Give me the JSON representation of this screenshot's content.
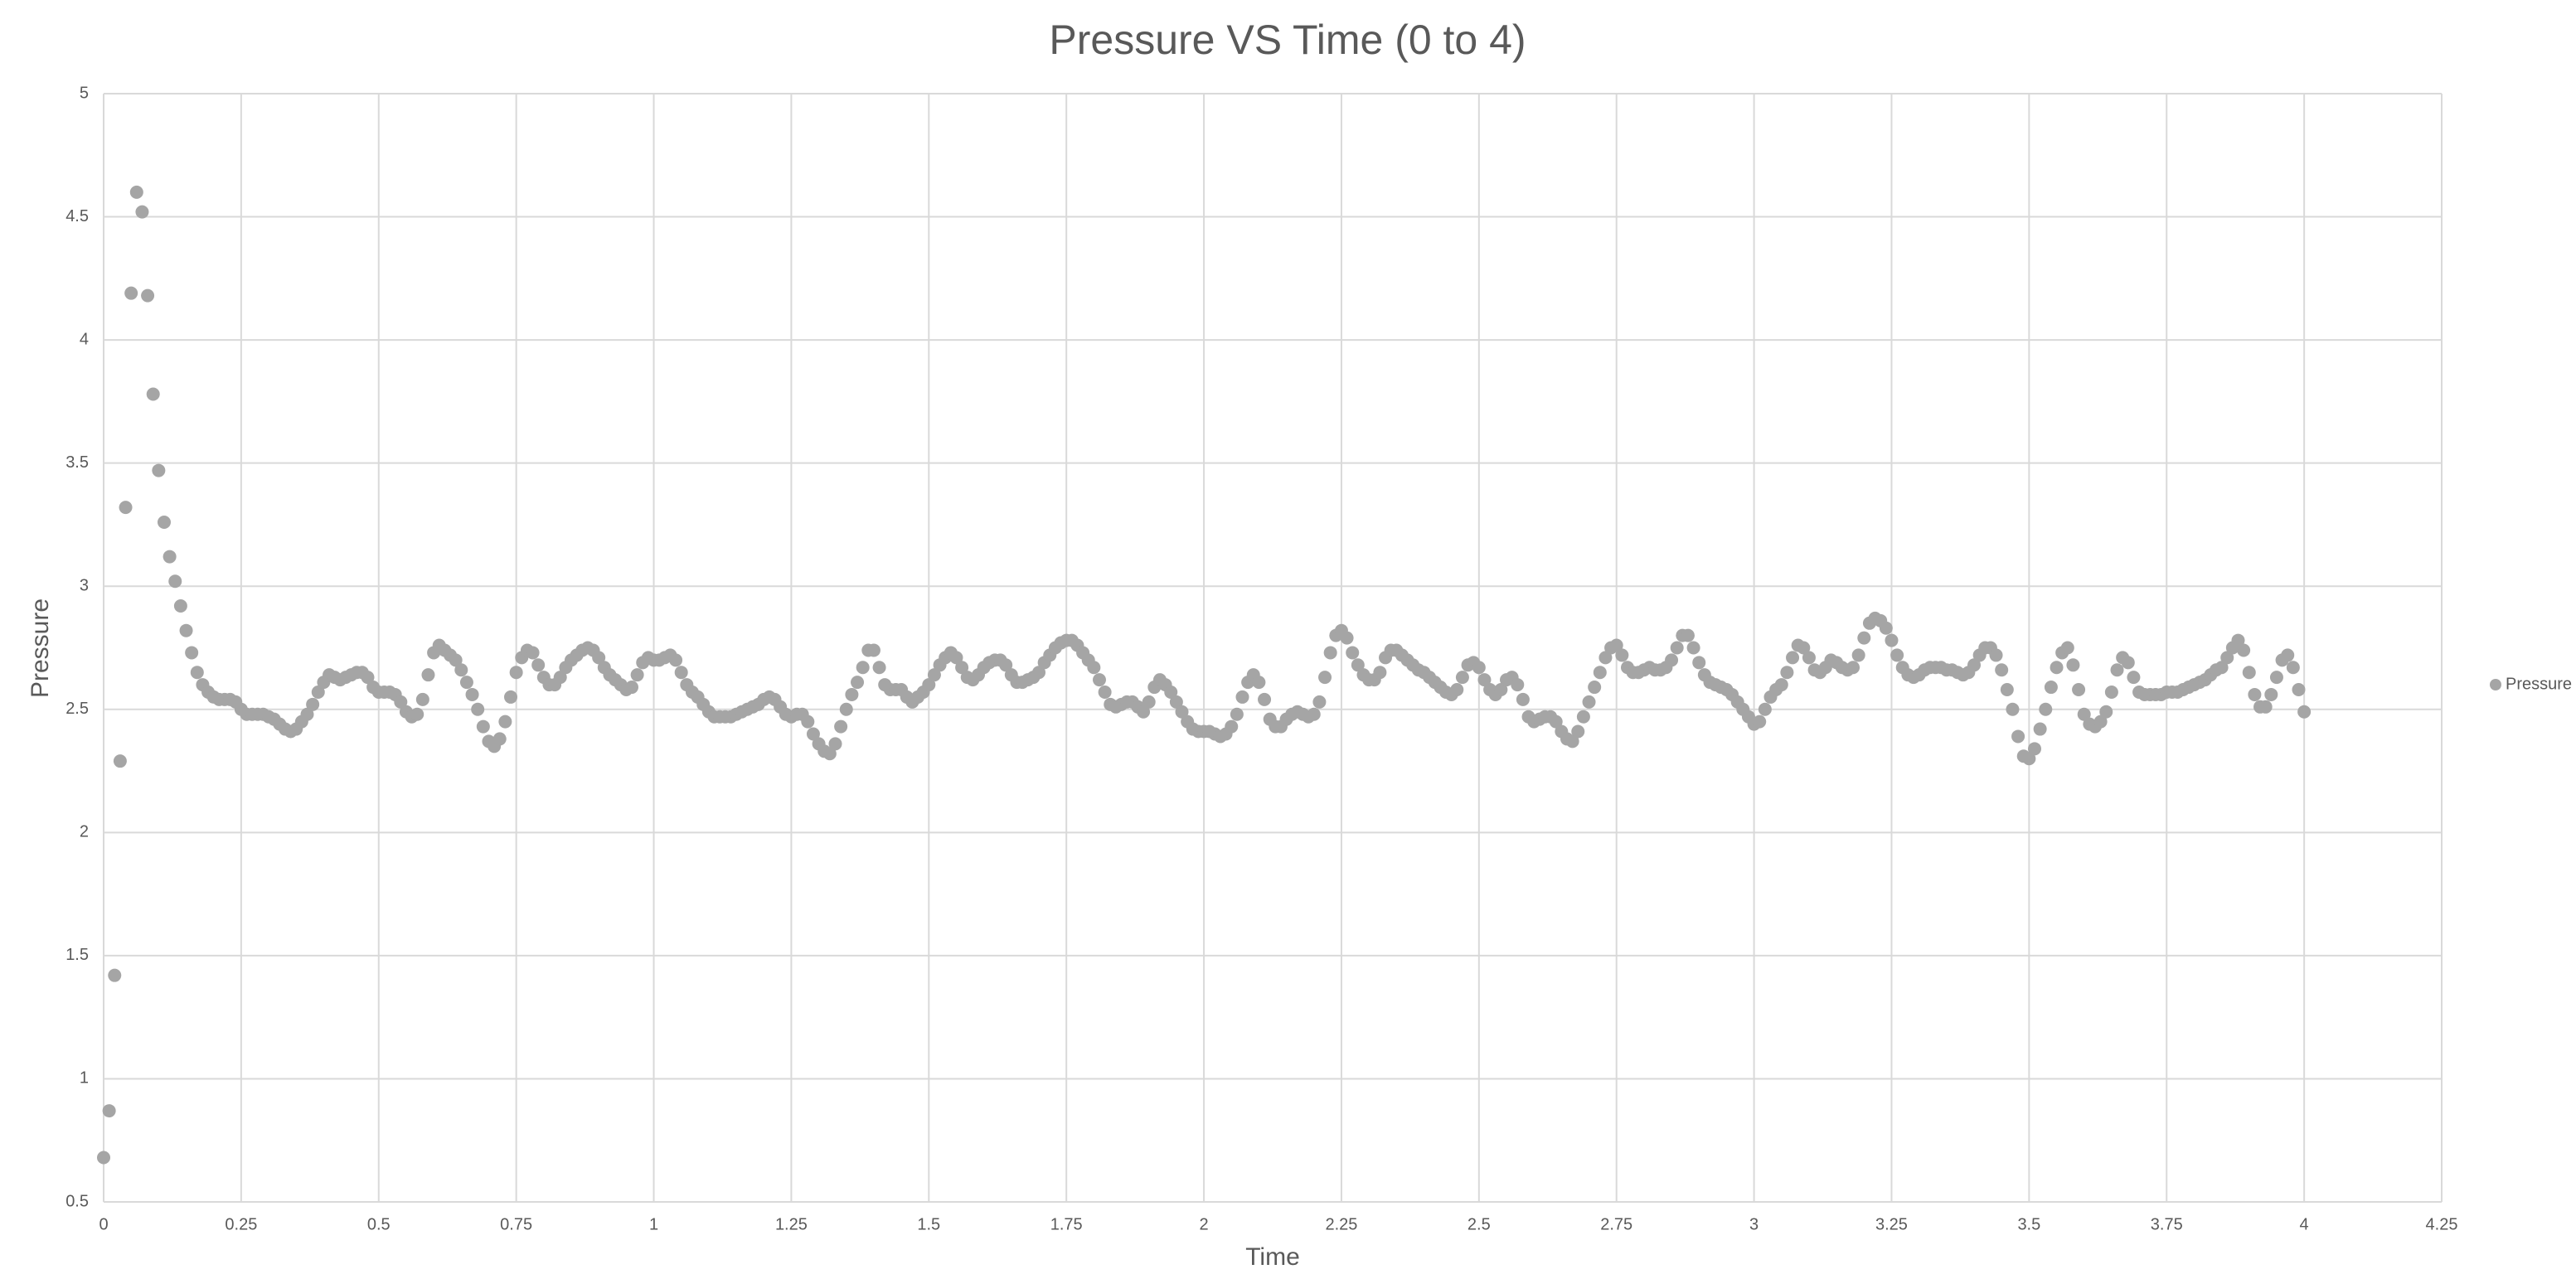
{
  "chart_data": {
    "type": "scatter",
    "title": "Pressure VS Time (0 to 4)",
    "x_label": "Time",
    "y_label": "Pressure",
    "xlim": [
      0,
      4.25
    ],
    "xticks": [
      0,
      0.25,
      0.5,
      0.75,
      1,
      1.25,
      1.5,
      1.75,
      2,
      2.25,
      2.5,
      2.75,
      3,
      3.25,
      3.5,
      3.75,
      4,
      4.25
    ],
    "ylim": [
      0.5,
      5
    ],
    "yticks": [
      0.5,
      1,
      1.5,
      2,
      2.5,
      3,
      3.5,
      4,
      4.5,
      5
    ],
    "grid": true,
    "legend": "right",
    "series": [
      {
        "name": "Pressure",
        "color": "#a5a5a5",
        "x": [
          0,
          0.01,
          0.02,
          0.03,
          0.04,
          0.05,
          0.06,
          0.07,
          0.08,
          0.09,
          0.1,
          0.11,
          0.12,
          0.13,
          0.14,
          0.15,
          0.16,
          0.17,
          0.18,
          0.19,
          0.2,
          0.21,
          0.22,
          0.23,
          0.24,
          0.25,
          0.26,
          0.27,
          0.28,
          0.29,
          0.3,
          0.31,
          0.32,
          0.33,
          0.34,
          0.35,
          0.36,
          0.37,
          0.38,
          0.39,
          0.4,
          0.41,
          0.42,
          0.43,
          0.44,
          0.45,
          0.46,
          0.47,
          0.48,
          0.49,
          0.5,
          0.51,
          0.52,
          0.53,
          0.54,
          0.55,
          0.56,
          0.57,
          0.58,
          0.59,
          0.6,
          0.61,
          0.62,
          0.63,
          0.64,
          0.65,
          0.66,
          0.67,
          0.68,
          0.69,
          0.7,
          0.71,
          0.72,
          0.73,
          0.74,
          0.75,
          0.76,
          0.77,
          0.78,
          0.79,
          0.8,
          0.81,
          0.82,
          0.83,
          0.84,
          0.85,
          0.86,
          0.87,
          0.88,
          0.89,
          0.9,
          0.91,
          0.92,
          0.93,
          0.94,
          0.95,
          0.96,
          0.97,
          0.98,
          0.99,
          1,
          1.01,
          1.02,
          1.03,
          1.04,
          1.05,
          1.06,
          1.07,
          1.08,
          1.09,
          1.1,
          1.11,
          1.12,
          1.13,
          1.14,
          1.15,
          1.16,
          1.17,
          1.18,
          1.19,
          1.2,
          1.21,
          1.22,
          1.23,
          1.24,
          1.25,
          1.26,
          1.27,
          1.28,
          1.29,
          1.3,
          1.31,
          1.32,
          1.33,
          1.34,
          1.35,
          1.36,
          1.37,
          1.38,
          1.39,
          1.4,
          1.41,
          1.42,
          1.43,
          1.44,
          1.45,
          1.46,
          1.47,
          1.48,
          1.49,
          1.5,
          1.51,
          1.52,
          1.53,
          1.54,
          1.55,
          1.56,
          1.57,
          1.58,
          1.59,
          1.6,
          1.61,
          1.62,
          1.63,
          1.64,
          1.65,
          1.66,
          1.67,
          1.68,
          1.69,
          1.7,
          1.71,
          1.72,
          1.73,
          1.74,
          1.75,
          1.76,
          1.77,
          1.78,
          1.79,
          1.8,
          1.81,
          1.82,
          1.83,
          1.84,
          1.85,
          1.86,
          1.87,
          1.88,
          1.89,
          1.9,
          1.91,
          1.92,
          1.93,
          1.94,
          1.95,
          1.96,
          1.97,
          1.98,
          1.99,
          2,
          2.01,
          2.02,
          2.03,
          2.04,
          2.05,
          2.06,
          2.07,
          2.08,
          2.09,
          2.1,
          2.11,
          2.12,
          2.13,
          2.14,
          2.15,
          2.16,
          2.17,
          2.18,
          2.19,
          2.2,
          2.21,
          2.22,
          2.23,
          2.24,
          2.25,
          2.26,
          2.27,
          2.28,
          2.29,
          2.3,
          2.31,
          2.32,
          2.33,
          2.34,
          2.35,
          2.36,
          2.37,
          2.38,
          2.39,
          2.4,
          2.41,
          2.42,
          2.43,
          2.44,
          2.45,
          2.46,
          2.47,
          2.48,
          2.49,
          2.5,
          2.51,
          2.52,
          2.53,
          2.54,
          2.55,
          2.56,
          2.57,
          2.58,
          2.59,
          2.6,
          2.61,
          2.62,
          2.63,
          2.64,
          2.65,
          2.66,
          2.67,
          2.68,
          2.69,
          2.7,
          2.71,
          2.72,
          2.73,
          2.74,
          2.75,
          2.76,
          2.77,
          2.78,
          2.79,
          2.8,
          2.81,
          2.82,
          2.83,
          2.84,
          2.85,
          2.86,
          2.87,
          2.88,
          2.89,
          2.9,
          2.91,
          2.92,
          2.93,
          2.94,
          2.95,
          2.96,
          2.97,
          2.98,
          2.99,
          3,
          3.01,
          3.02,
          3.03,
          3.04,
          3.05,
          3.06,
          3.07,
          3.08,
          3.09,
          3.1,
          3.11,
          3.12,
          3.13,
          3.14,
          3.15,
          3.16,
          3.17,
          3.18,
          3.19,
          3.2,
          3.21,
          3.22,
          3.23,
          3.24,
          3.25,
          3.26,
          3.27,
          3.28,
          3.29,
          3.3,
          3.31,
          3.32,
          3.33,
          3.34,
          3.35,
          3.36,
          3.37,
          3.38,
          3.39,
          3.4,
          3.41,
          3.42,
          3.43,
          3.44,
          3.45,
          3.46,
          3.47,
          3.48,
          3.49,
          3.5,
          3.51,
          3.52,
          3.53,
          3.54,
          3.55,
          3.56,
          3.57,
          3.58,
          3.59,
          3.6,
          3.61,
          3.62,
          3.63,
          3.64,
          3.65,
          3.66,
          3.67,
          3.68,
          3.69,
          3.7,
          3.71,
          3.72,
          3.73,
          3.74,
          3.75,
          3.76,
          3.77,
          3.78,
          3.79,
          3.8,
          3.81,
          3.82,
          3.83,
          3.84,
          3.85,
          3.86,
          3.87,
          3.88,
          3.89,
          3.9,
          3.91,
          3.92,
          3.93,
          3.94,
          3.95,
          3.96,
          3.97,
          3.98,
          3.99,
          4
        ],
        "values": [
          0.68,
          0.87,
          1.42,
          2.29,
          3.32,
          4.19,
          4.6,
          4.52,
          4.18,
          3.78,
          3.47,
          3.26,
          3.12,
          3.02,
          2.92,
          2.82,
          2.73,
          2.65,
          2.6,
          2.57,
          2.55,
          2.54,
          2.54,
          2.54,
          2.53,
          2.5,
          2.48,
          2.48,
          2.48,
          2.48,
          2.47,
          2.46,
          2.44,
          2.42,
          2.41,
          2.42,
          2.45,
          2.48,
          2.52,
          2.57,
          2.61,
          2.64,
          2.63,
          2.62,
          2.63,
          2.64,
          2.65,
          2.65,
          2.63,
          2.59,
          2.57,
          2.57,
          2.57,
          2.56,
          2.53,
          2.49,
          2.47,
          2.48,
          2.54,
          2.64,
          2.73,
          2.76,
          2.74,
          2.72,
          2.7,
          2.66,
          2.61,
          2.56,
          2.5,
          2.43,
          2.37,
          2.35,
          2.38,
          2.45,
          2.55,
          2.65,
          2.71,
          2.74,
          2.73,
          2.68,
          2.63,
          2.6,
          2.6,
          2.63,
          2.67,
          2.7,
          2.72,
          2.74,
          2.75,
          2.74,
          2.71,
          2.67,
          2.64,
          2.62,
          2.6,
          2.58,
          2.59,
          2.64,
          2.69,
          2.71,
          2.7,
          2.7,
          2.71,
          2.72,
          2.7,
          2.65,
          2.6,
          2.57,
          2.55,
          2.52,
          2.49,
          2.47,
          2.47,
          2.47,
          2.47,
          2.48,
          2.49,
          2.5,
          2.51,
          2.52,
          2.54,
          2.55,
          2.54,
          2.51,
          2.48,
          2.47,
          2.48,
          2.48,
          2.45,
          2.4,
          2.36,
          2.33,
          2.32,
          2.36,
          2.43,
          2.5,
          2.56,
          2.61,
          2.67,
          2.74,
          2.74,
          2.67,
          2.6,
          2.58,
          2.58,
          2.58,
          2.55,
          2.53,
          2.55,
          2.57,
          2.6,
          2.64,
          2.68,
          2.71,
          2.73,
          2.71,
          2.67,
          2.63,
          2.62,
          2.64,
          2.67,
          2.69,
          2.7,
          2.7,
          2.68,
          2.64,
          2.61,
          2.61,
          2.62,
          2.63,
          2.65,
          2.69,
          2.72,
          2.75,
          2.77,
          2.78,
          2.78,
          2.76,
          2.73,
          2.7,
          2.67,
          2.62,
          2.57,
          2.52,
          2.51,
          2.52,
          2.53,
          2.53,
          2.51,
          2.49,
          2.53,
          2.59,
          2.62,
          2.6,
          2.57,
          2.53,
          2.49,
          2.45,
          2.42,
          2.41,
          2.41,
          2.41,
          2.4,
          2.39,
          2.4,
          2.43,
          2.48,
          2.55,
          2.61,
          2.64,
          2.61,
          2.54,
          2.46,
          2.43,
          2.43,
          2.46,
          2.48,
          2.49,
          2.48,
          2.47,
          2.48,
          2.53,
          2.63,
          2.73,
          2.8,
          2.82,
          2.79,
          2.73,
          2.68,
          2.64,
          2.62,
          2.62,
          2.65,
          2.71,
          2.74,
          2.74,
          2.72,
          2.7,
          2.68,
          2.66,
          2.65,
          2.63,
          2.61,
          2.59,
          2.57,
          2.56,
          2.58,
          2.63,
          2.68,
          2.69,
          2.67,
          2.62,
          2.58,
          2.56,
          2.58,
          2.62,
          2.63,
          2.6,
          2.54,
          2.47,
          2.45,
          2.46,
          2.47,
          2.47,
          2.45,
          2.41,
          2.38,
          2.37,
          2.41,
          2.47,
          2.53,
          2.59,
          2.65,
          2.71,
          2.75,
          2.76,
          2.72,
          2.67,
          2.65,
          2.65,
          2.66,
          2.67,
          2.66,
          2.66,
          2.67,
          2.7,
          2.75,
          2.8,
          2.8,
          2.75,
          2.69,
          2.64,
          2.61,
          2.6,
          2.59,
          2.58,
          2.56,
          2.53,
          2.5,
          2.47,
          2.44,
          2.45,
          2.5,
          2.55,
          2.58,
          2.6,
          2.65,
          2.71,
          2.76,
          2.75,
          2.71,
          2.66,
          2.65,
          2.67,
          2.7,
          2.69,
          2.67,
          2.66,
          2.67,
          2.72,
          2.79,
          2.85,
          2.87,
          2.86,
          2.83,
          2.78,
          2.72,
          2.67,
          2.64,
          2.63,
          2.64,
          2.66,
          2.67,
          2.67,
          2.67,
          2.66,
          2.66,
          2.65,
          2.64,
          2.65,
          2.68,
          2.72,
          2.75,
          2.75,
          2.72,
          2.66,
          2.58,
          2.5,
          2.39,
          2.31,
          2.3,
          2.34,
          2.42,
          2.5,
          2.59,
          2.67,
          2.73,
          2.75,
          2.68,
          2.58,
          2.48,
          2.44,
          2.43,
          2.45,
          2.49,
          2.57,
          2.66,
          2.71,
          2.69,
          2.63,
          2.57,
          2.56,
          2.56,
          2.56,
          2.56,
          2.57,
          2.57,
          2.57,
          2.58,
          2.59,
          2.6,
          2.61,
          2.62,
          2.64,
          2.66,
          2.67,
          2.71,
          2.75,
          2.78,
          2.74,
          2.65,
          2.56,
          2.51,
          2.51,
          2.56,
          2.63,
          2.7,
          2.72,
          2.67,
          2.58,
          2.49
        ]
      }
    ]
  }
}
